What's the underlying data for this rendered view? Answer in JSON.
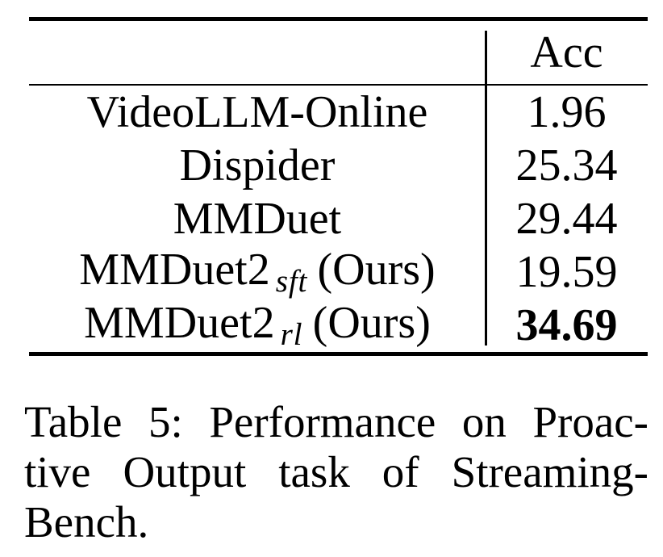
{
  "table": {
    "header": {
      "model_col": "",
      "acc": "Acc"
    },
    "rows": [
      {
        "name": "VideoLLM-Online",
        "acc": "1.96"
      },
      {
        "name": "Dispider",
        "acc": "25.34"
      },
      {
        "name": "MMDuet",
        "acc": "29.44"
      },
      {
        "name": "MMDuet2",
        "subscript": "sft",
        "suffix": "(Ours)",
        "acc": "19.59"
      },
      {
        "name": "MMDuet2",
        "subscript": "rl",
        "suffix": "(Ours)",
        "acc": "34.69",
        "emphasis": "bold"
      }
    ]
  },
  "caption": {
    "label": "Table 5:",
    "lines": [
      "Table 5: Performance on Proac-",
      "tive Output task of Streaming-",
      "Bench."
    ],
    "full_text": "Table 5: Performance on Proactive Output task of StreamingBench."
  },
  "colors": {
    "text": "#000000",
    "background": "#ffffff"
  }
}
